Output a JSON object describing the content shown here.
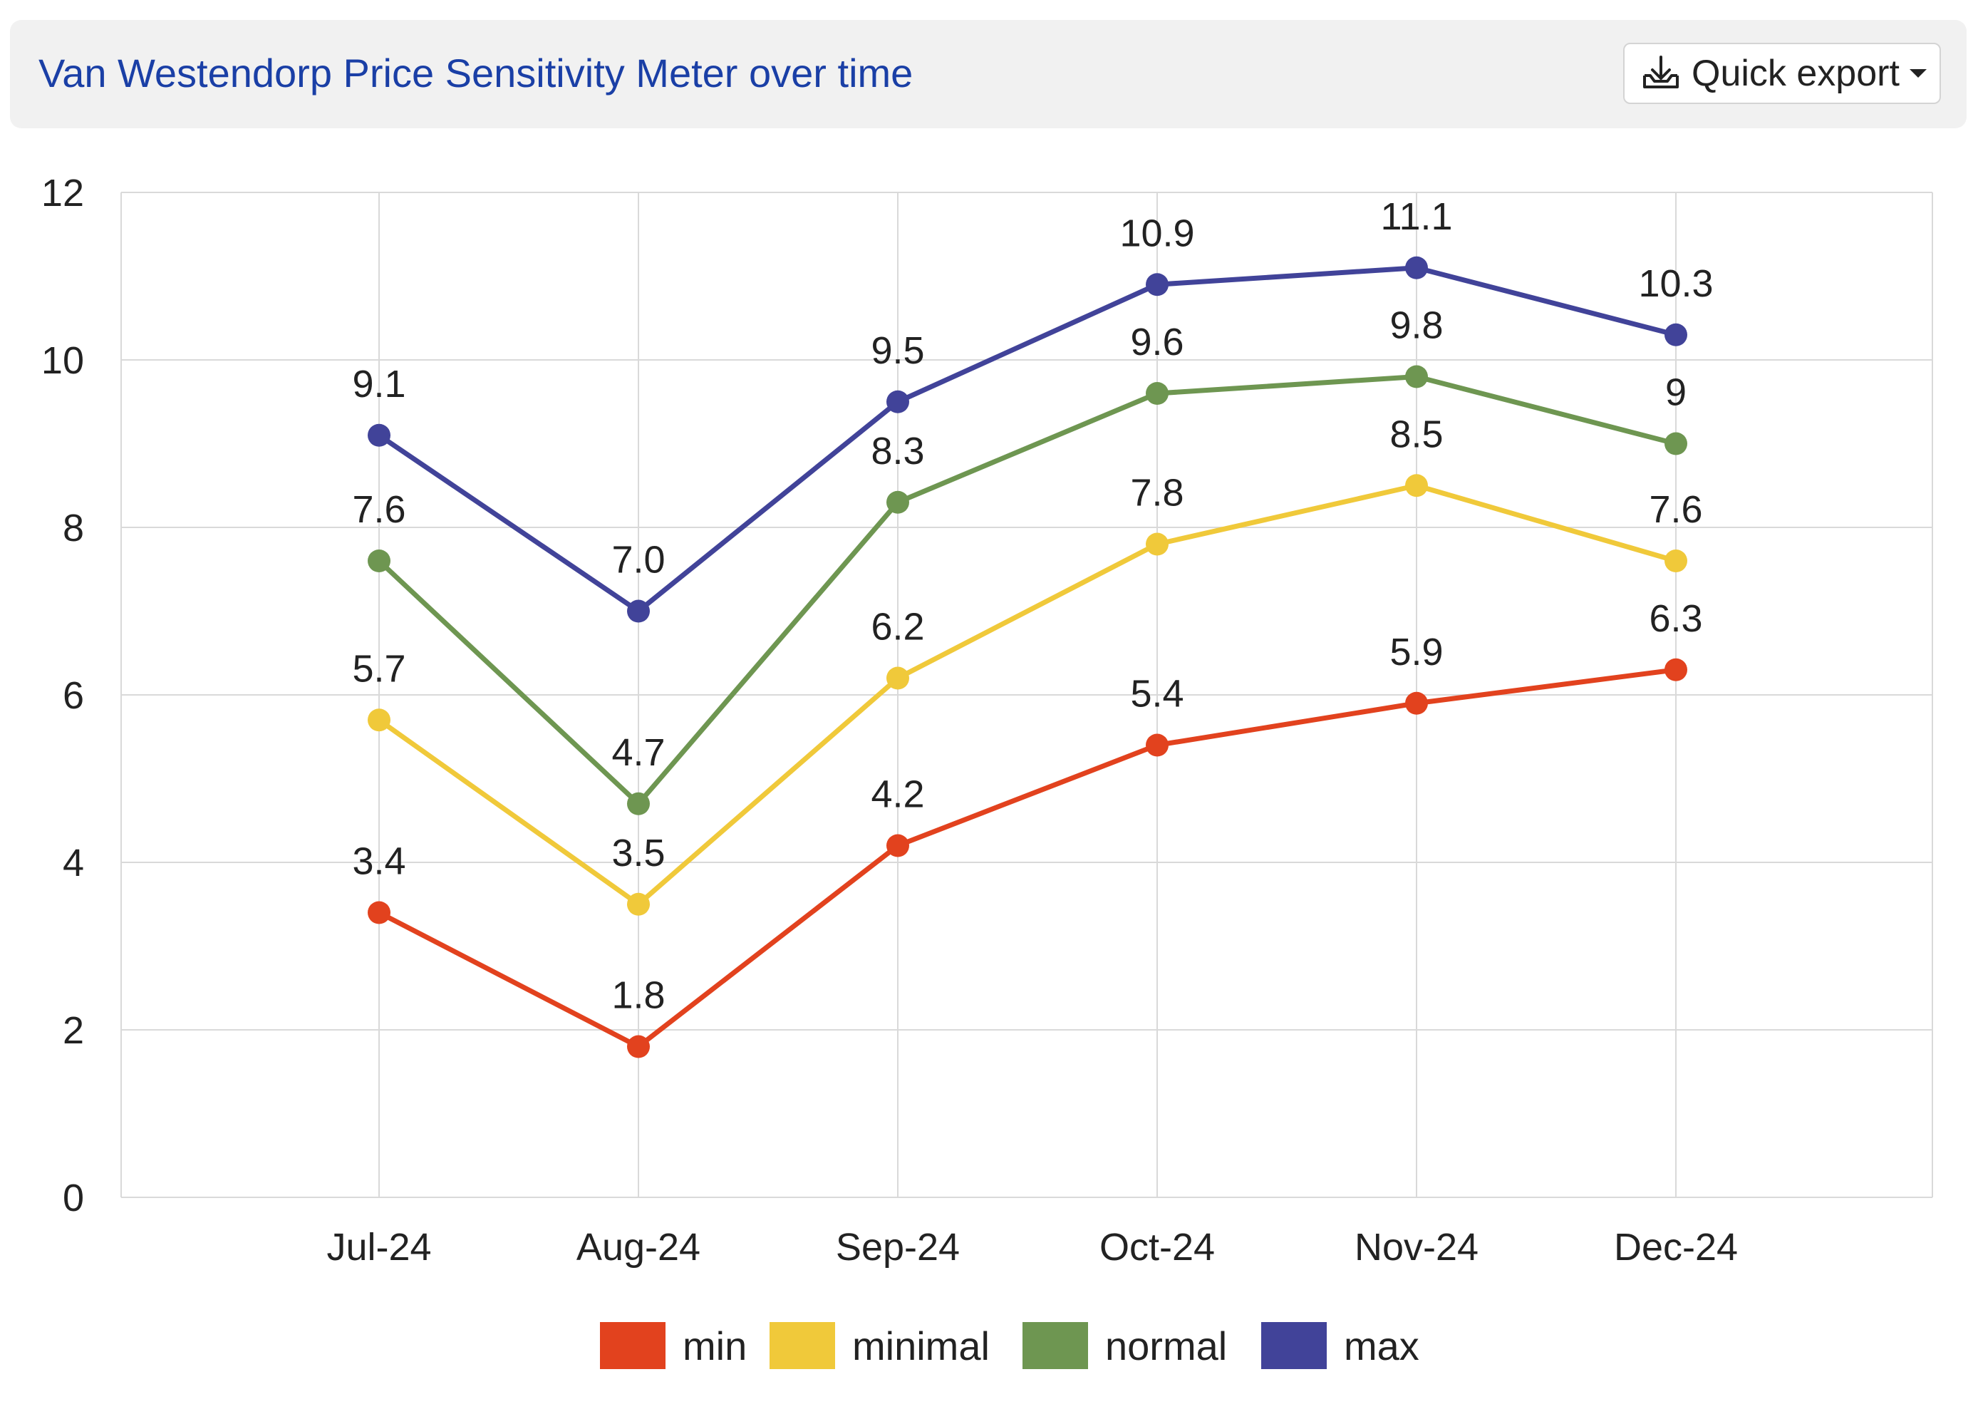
{
  "header": {
    "title": "Van Westendorp Price Sensitivity Meter over time",
    "export_label": "Quick export"
  },
  "icons": {
    "export": "download-tray-icon",
    "dropdown": "caret-down-icon"
  },
  "chart_data": {
    "type": "line",
    "title": "Van Westendorp Price Sensitivity Meter over time",
    "xlabel": "",
    "ylabel": "",
    "categories": [
      "Jul-24",
      "Aug-24",
      "Sep-24",
      "Oct-24",
      "Nov-24",
      "Dec-24"
    ],
    "ylim": [
      0,
      12
    ],
    "yticks": [
      0,
      2,
      4,
      6,
      8,
      10,
      12
    ],
    "grid": true,
    "legend_position": "bottom",
    "series": [
      {
        "name": "min",
        "color": "#e2421e",
        "values": [
          3.4,
          1.8,
          4.2,
          5.4,
          5.9,
          6.3
        ],
        "labels": [
          "3.4",
          "1.8",
          "4.2",
          "5.4",
          "5.9",
          "6.3"
        ]
      },
      {
        "name": "minimal",
        "color": "#f0c93a",
        "values": [
          5.7,
          3.5,
          6.2,
          7.8,
          8.5,
          7.6
        ],
        "labels": [
          "5.7",
          "3.5",
          "6.2",
          "7.8",
          "8.5",
          "7.6"
        ]
      },
      {
        "name": "normal",
        "color": "#6e9651",
        "values": [
          7.6,
          4.7,
          8.3,
          9.6,
          9.8,
          9.0
        ],
        "labels": [
          "7.6",
          "4.7",
          "8.3",
          "9.6",
          "9.8",
          "9"
        ]
      },
      {
        "name": "max",
        "color": "#414399",
        "values": [
          9.1,
          7.0,
          9.5,
          10.9,
          11.1,
          10.3
        ],
        "labels": [
          "9.1",
          "7.0",
          "9.5",
          "10.9",
          "11.1",
          "10.3"
        ]
      }
    ]
  }
}
